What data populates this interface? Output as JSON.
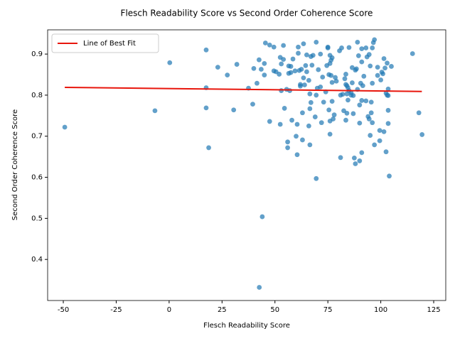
{
  "chart_data": {
    "type": "scatter",
    "title": "Flesch Readability Score vs Second Order Coherence Score",
    "x_label": "Flesch Readability Score",
    "y_label": "Second Order Coherence Score",
    "xlim": [
      -57.4,
      130.7
    ],
    "ylim": [
      0.3,
      0.959
    ],
    "xticks": [
      -50,
      -25,
      0,
      25,
      50,
      75,
      100,
      125
    ],
    "yticks": [
      0.4,
      0.5,
      0.6,
      0.7,
      0.8,
      0.9
    ],
    "grid": false,
    "legend": "upper left",
    "series": [
      {
        "color": "#1f77b4",
        "opacity": 0.7,
        "x": [
          -49.3,
          -6.7,
          0.3,
          17.5,
          17.5,
          17.5,
          18.7,
          23,
          27.5,
          30.5,
          32,
          37.5,
          39.5,
          40,
          41.5,
          42.5,
          43.5,
          44,
          42.6,
          45,
          45,
          45.5,
          47.5,
          47.5,
          49.5,
          49.5,
          50.5,
          52,
          52.5,
          52.5,
          53,
          53,
          54,
          54,
          54.5,
          55.5,
          56,
          56,
          56.5,
          56.5,
          57,
          57.5,
          57.5,
          58,
          58.5,
          59.5,
          60,
          60.5,
          60.5,
          61,
          61,
          61.5,
          62,
          62,
          62.5,
          63,
          63,
          63.5,
          63.5,
          64,
          64.5,
          65,
          65,
          66,
          66,
          66.5,
          66.5,
          66.5,
          67,
          67,
          67.5,
          68,
          69,
          69.5,
          69.5,
          69.5,
          70,
          70.5,
          71.5,
          71.5,
          72,
          72.5,
          73,
          74,
          74.5,
          75,
          75,
          75.5,
          75.5,
          76,
          76,
          76,
          76,
          76.5,
          76.5,
          77,
          77,
          77,
          77.5,
          78,
          78.5,
          79,
          80.5,
          81,
          81,
          81.5,
          82,
          82.5,
          83,
          83.5,
          83.5,
          83.5,
          84,
          84,
          84,
          84.5,
          84.5,
          85,
          85,
          86,
          86.5,
          86.5,
          87,
          87,
          87.5,
          88,
          88,
          88.5,
          89,
          89,
          89.5,
          90,
          90,
          90,
          90.5,
          91,
          91,
          91,
          91,
          91.5,
          92,
          93,
          93,
          93.5,
          94,
          94.5,
          94.5,
          95,
          95,
          95.5,
          95.5,
          96,
          96,
          96,
          96.5,
          97,
          97,
          98.5,
          98.5,
          99.5,
          99.5,
          100,
          100.5,
          101,
          101.5,
          101.5,
          102,
          102.5,
          102.5,
          103,
          103,
          103.5,
          103.5,
          103.5,
          103.5,
          104,
          105,
          115,
          118,
          119.5,
          86
        ],
        "values": [
          0.722,
          0.762,
          0.879,
          0.91,
          0.818,
          0.769,
          0.672,
          0.868,
          0.849,
          0.764,
          0.875,
          0.817,
          0.778,
          0.865,
          0.829,
          0.886,
          0.863,
          0.504,
          0.332,
          0.877,
          0.849,
          0.927,
          0.922,
          0.736,
          0.917,
          0.859,
          0.857,
          0.851,
          0.892,
          0.729,
          0.876,
          0.811,
          0.921,
          0.887,
          0.768,
          0.814,
          0.672,
          0.686,
          0.871,
          0.853,
          0.811,
          0.87,
          0.855,
          0.739,
          0.888,
          0.859,
          0.7,
          0.729,
          0.655,
          0.902,
          0.917,
          0.86,
          0.822,
          0.826,
          0.863,
          0.691,
          0.757,
          0.925,
          0.842,
          0.825,
          0.872,
          0.857,
          0.898,
          0.836,
          0.725,
          0.679,
          0.803,
          0.767,
          0.894,
          0.782,
          0.873,
          0.897,
          0.747,
          0.929,
          0.8,
          0.597,
          0.817,
          0.862,
          0.9,
          0.82,
          0.733,
          0.844,
          0.783,
          0.808,
          0.872,
          0.915,
          0.917,
          0.85,
          0.764,
          0.877,
          0.737,
          0.705,
          0.897,
          0.848,
          0.885,
          0.891,
          0.831,
          0.785,
          0.742,
          0.752,
          0.843,
          0.834,
          0.908,
          0.648,
          0.8,
          0.915,
          0.802,
          0.762,
          0.84,
          0.851,
          0.826,
          0.739,
          0.823,
          0.803,
          0.756,
          0.788,
          0.818,
          0.916,
          0.811,
          0.806,
          0.83,
          0.867,
          0.755,
          0.799,
          0.647,
          0.861,
          0.633,
          0.864,
          0.929,
          0.814,
          0.896,
          0.776,
          0.64,
          0.732,
          0.829,
          0.881,
          0.913,
          0.787,
          0.66,
          0.823,
          0.846,
          0.915,
          0.786,
          0.893,
          0.748,
          0.899,
          0.742,
          0.871,
          0.702,
          0.783,
          0.757,
          0.829,
          0.915,
          0.733,
          0.928,
          0.935,
          0.679,
          0.868,
          0.848,
          0.714,
          0.689,
          0.837,
          0.856,
          0.852,
          0.889,
          0.711,
          0.866,
          0.662,
          0.805,
          0.878,
          0.8,
          0.815,
          0.799,
          0.763,
          0.731,
          0.603,
          0.87,
          0.901,
          0.757,
          0.704,
          0.8
        ]
      },
      {
        "name": "Line of Best Fit",
        "type": "line",
        "color": "#e8160c",
        "x": [
          -49.3,
          119.4
        ],
        "values": [
          0.819,
          0.809
        ]
      }
    ]
  }
}
